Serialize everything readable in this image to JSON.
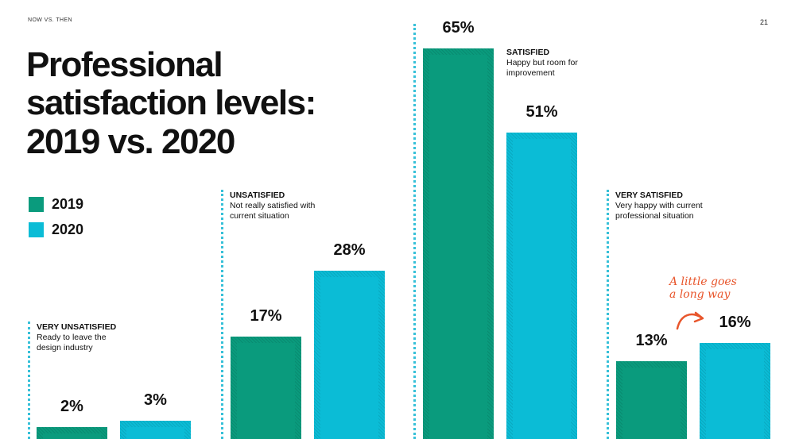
{
  "header": {
    "eyebrow": "NOW VS. THEN",
    "page_number": "21"
  },
  "title": "Professional satisfaction levels: 2019 vs. 2020",
  "colors": {
    "y2019": "#0a9b7d",
    "y2020": "#0bbcd6",
    "divider": "#36c0d8",
    "annotation": "#e8552b"
  },
  "legend": [
    {
      "label": "2019",
      "color": "#0a9b7d"
    },
    {
      "label": "2020",
      "color": "#0bbcd6"
    }
  ],
  "annotation": {
    "line1": "A little goes",
    "line2": "a long way",
    "icon": "curved-arrow-icon"
  },
  "chart_data": {
    "type": "bar",
    "categories": [
      "VERY UNSATISFIED",
      "UNSATISFIED",
      "SATISFIED",
      "VERY SATISFIED"
    ],
    "descriptions": [
      "Ready to leave the design industry",
      "Not really satisfied with current situation",
      "Happy but room for improvement",
      "Very happy with current professional situation"
    ],
    "series": [
      {
        "name": "2019",
        "values": [
          2,
          17,
          65,
          13
        ]
      },
      {
        "name": "2020",
        "values": [
          3,
          28,
          51,
          16
        ]
      }
    ],
    "value_labels": [
      [
        "2%",
        "3%"
      ],
      [
        "17%",
        "28%"
      ],
      [
        "65%",
        "51%"
      ],
      [
        "13%",
        "16%"
      ]
    ],
    "unit": "%",
    "ylim": [
      0,
      65
    ],
    "grid": false,
    "legend_position": "left"
  }
}
